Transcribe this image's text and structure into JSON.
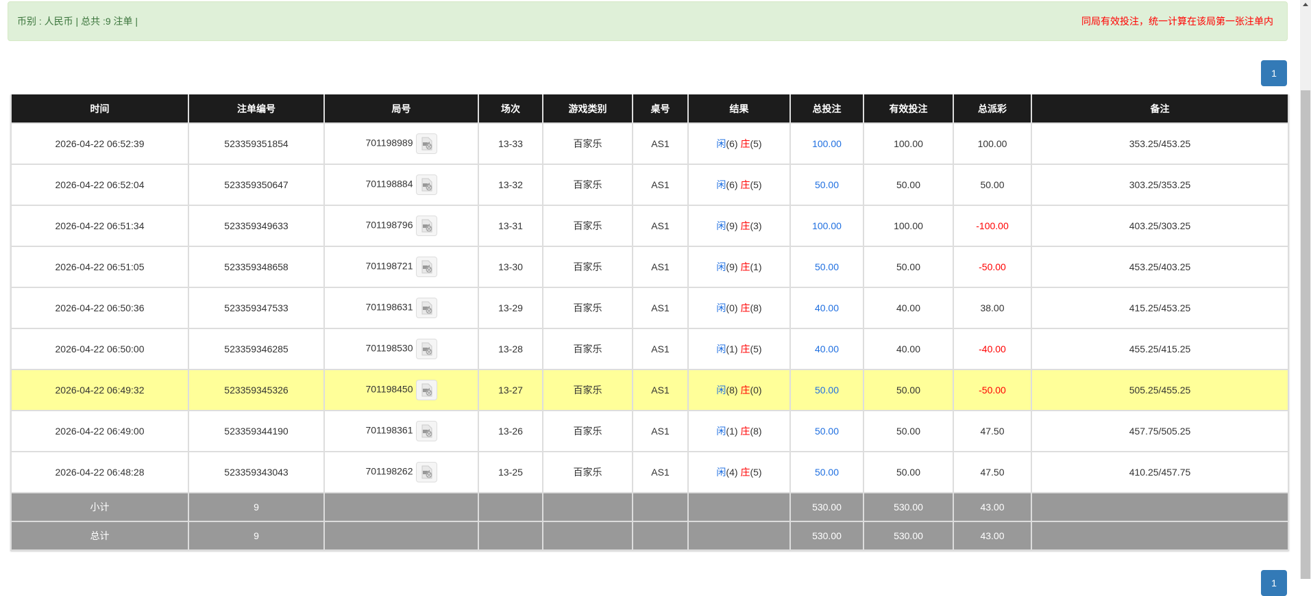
{
  "alert": {
    "summary": "币别 : 人民币 | 总共 :9 注单 |",
    "notice": "同局有效投注，统一计算在该局第一张注单内"
  },
  "pagination": {
    "current_page": "1"
  },
  "table": {
    "headers": [
      "时间",
      "注单编号",
      "局号",
      "场次",
      "游戏类别",
      "桌号",
      "结果",
      "总投注",
      "有效投注",
      "总派彩",
      "备注"
    ],
    "rows": [
      {
        "time": "2026-04-22 06:52:39",
        "bet_id": "523359351854",
        "round": "701198989",
        "session": "13-33",
        "game": "百家乐",
        "table": "AS1",
        "player_label": "闲",
        "player": "(6)",
        "banker_label": "庄",
        "banker": "(5)",
        "total_bet": "100.00",
        "valid_bet": "100.00",
        "payout": "100.00",
        "payout_negative": false,
        "note": "353.25/453.25",
        "highlight": false
      },
      {
        "time": "2026-04-22 06:52:04",
        "bet_id": "523359350647",
        "round": "701198884",
        "session": "13-32",
        "game": "百家乐",
        "table": "AS1",
        "player_label": "闲",
        "player": "(6)",
        "banker_label": "庄",
        "banker": "(5)",
        "total_bet": "50.00",
        "valid_bet": "50.00",
        "payout": "50.00",
        "payout_negative": false,
        "note": "303.25/353.25",
        "highlight": false
      },
      {
        "time": "2026-04-22 06:51:34",
        "bet_id": "523359349633",
        "round": "701198796",
        "session": "13-31",
        "game": "百家乐",
        "table": "AS1",
        "player_label": "闲",
        "player": "(9)",
        "banker_label": "庄",
        "banker": "(3)",
        "total_bet": "100.00",
        "valid_bet": "100.00",
        "payout": "-100.00",
        "payout_negative": true,
        "note": "403.25/303.25",
        "highlight": false
      },
      {
        "time": "2026-04-22 06:51:05",
        "bet_id": "523359348658",
        "round": "701198721",
        "session": "13-30",
        "game": "百家乐",
        "table": "AS1",
        "player_label": "闲",
        "player": "(9)",
        "banker_label": "庄",
        "banker": "(1)",
        "total_bet": "50.00",
        "valid_bet": "50.00",
        "payout": "-50.00",
        "payout_negative": true,
        "note": "453.25/403.25",
        "highlight": false
      },
      {
        "time": "2026-04-22 06:50:36",
        "bet_id": "523359347533",
        "round": "701198631",
        "session": "13-29",
        "game": "百家乐",
        "table": "AS1",
        "player_label": "闲",
        "player": "(0)",
        "banker_label": "庄",
        "banker": "(8)",
        "total_bet": "40.00",
        "valid_bet": "40.00",
        "payout": "38.00",
        "payout_negative": false,
        "note": "415.25/453.25",
        "highlight": false
      },
      {
        "time": "2026-04-22 06:50:00",
        "bet_id": "523359346285",
        "round": "701198530",
        "session": "13-28",
        "game": "百家乐",
        "table": "AS1",
        "player_label": "闲",
        "player": "(1)",
        "banker_label": "庄",
        "banker": "(5)",
        "total_bet": "40.00",
        "valid_bet": "40.00",
        "payout": "-40.00",
        "payout_negative": true,
        "note": "455.25/415.25",
        "highlight": false
      },
      {
        "time": "2026-04-22 06:49:32",
        "bet_id": "523359345326",
        "round": "701198450",
        "session": "13-27",
        "game": "百家乐",
        "table": "AS1",
        "player_label": "闲",
        "player": "(8)",
        "banker_label": "庄",
        "banker": "(0)",
        "total_bet": "50.00",
        "valid_bet": "50.00",
        "payout": "-50.00",
        "payout_negative": true,
        "note": "505.25/455.25",
        "highlight": true
      },
      {
        "time": "2026-04-22 06:49:00",
        "bet_id": "523359344190",
        "round": "701198361",
        "session": "13-26",
        "game": "百家乐",
        "table": "AS1",
        "player_label": "闲",
        "player": "(1)",
        "banker_label": "庄",
        "banker": "(8)",
        "total_bet": "50.00",
        "valid_bet": "50.00",
        "payout": "47.50",
        "payout_negative": false,
        "note": "457.75/505.25",
        "highlight": false
      },
      {
        "time": "2026-04-22 06:48:28",
        "bet_id": "523359343043",
        "round": "701198262",
        "session": "13-25",
        "game": "百家乐",
        "table": "AS1",
        "player_label": "闲",
        "player": "(4)",
        "banker_label": "庄",
        "banker": "(5)",
        "total_bet": "50.00",
        "valid_bet": "50.00",
        "payout": "47.50",
        "payout_negative": false,
        "note": "410.25/457.75",
        "highlight": false
      }
    ],
    "summary": [
      {
        "label": "小计",
        "count": "9",
        "total_bet": "530.00",
        "valid_bet": "530.00",
        "payout": "43.00"
      },
      {
        "label": "总计",
        "count": "9",
        "total_bet": "530.00",
        "valid_bet": "530.00",
        "payout": "43.00"
      }
    ]
  },
  "colors": {
    "highlight_row": "#ffff99",
    "player": "#1f6fe0",
    "banker": "#ff0000",
    "negative": "#ff0000",
    "header_bg": "#1c1c1c",
    "summary_bg": "#999999"
  },
  "icons": {
    "round_video": "video-file-icon"
  }
}
